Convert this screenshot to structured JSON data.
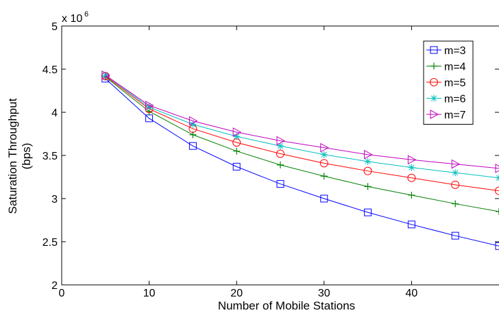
{
  "chart_data": {
    "type": "line",
    "xlabel": "Number of Mobile Stations",
    "ylabel_line1": "Saturation Throughput",
    "ylabel_line2": "(bps)",
    "y_multiplier": "x 10",
    "y_multiplier_exp": "6",
    "xlim": [
      0,
      50
    ],
    "ylim": [
      2,
      5
    ],
    "x_ticks": [
      0,
      10,
      20,
      30,
      40
    ],
    "y_ticks": [
      2,
      2.5,
      3,
      3.5,
      4,
      4.5,
      5
    ],
    "y_tick_labels": [
      "2",
      "2.5",
      "3",
      "3.5",
      "4",
      "4.5",
      "5"
    ],
    "grid": false,
    "legend_position": "top-right",
    "x": [
      5,
      10,
      15,
      20,
      25,
      30,
      35,
      40,
      45,
      50
    ],
    "series": [
      {
        "name": "m=3",
        "color": "#0000ff",
        "marker": "square",
        "values": [
          4.39,
          3.93,
          3.61,
          3.37,
          3.17,
          3.0,
          2.84,
          2.7,
          2.57,
          2.45
        ]
      },
      {
        "name": "m=4",
        "color": "#008000",
        "marker": "plus",
        "values": [
          4.41,
          4.01,
          3.74,
          3.55,
          3.39,
          3.26,
          3.14,
          3.04,
          2.94,
          2.85
        ]
      },
      {
        "name": "m=5",
        "color": "#ff0000",
        "marker": "circle",
        "values": [
          4.42,
          4.04,
          3.81,
          3.65,
          3.52,
          3.41,
          3.32,
          3.24,
          3.16,
          3.09
        ]
      },
      {
        "name": "m=6",
        "color": "#00bfbf",
        "marker": "asterisk",
        "values": [
          4.43,
          4.06,
          3.86,
          3.72,
          3.61,
          3.51,
          3.43,
          3.36,
          3.3,
          3.24
        ]
      },
      {
        "name": "m=7",
        "color": "#bf00bf",
        "marker": "triangle-right",
        "values": [
          4.43,
          4.08,
          3.9,
          3.77,
          3.67,
          3.59,
          3.51,
          3.45,
          3.4,
          3.35
        ]
      }
    ]
  }
}
